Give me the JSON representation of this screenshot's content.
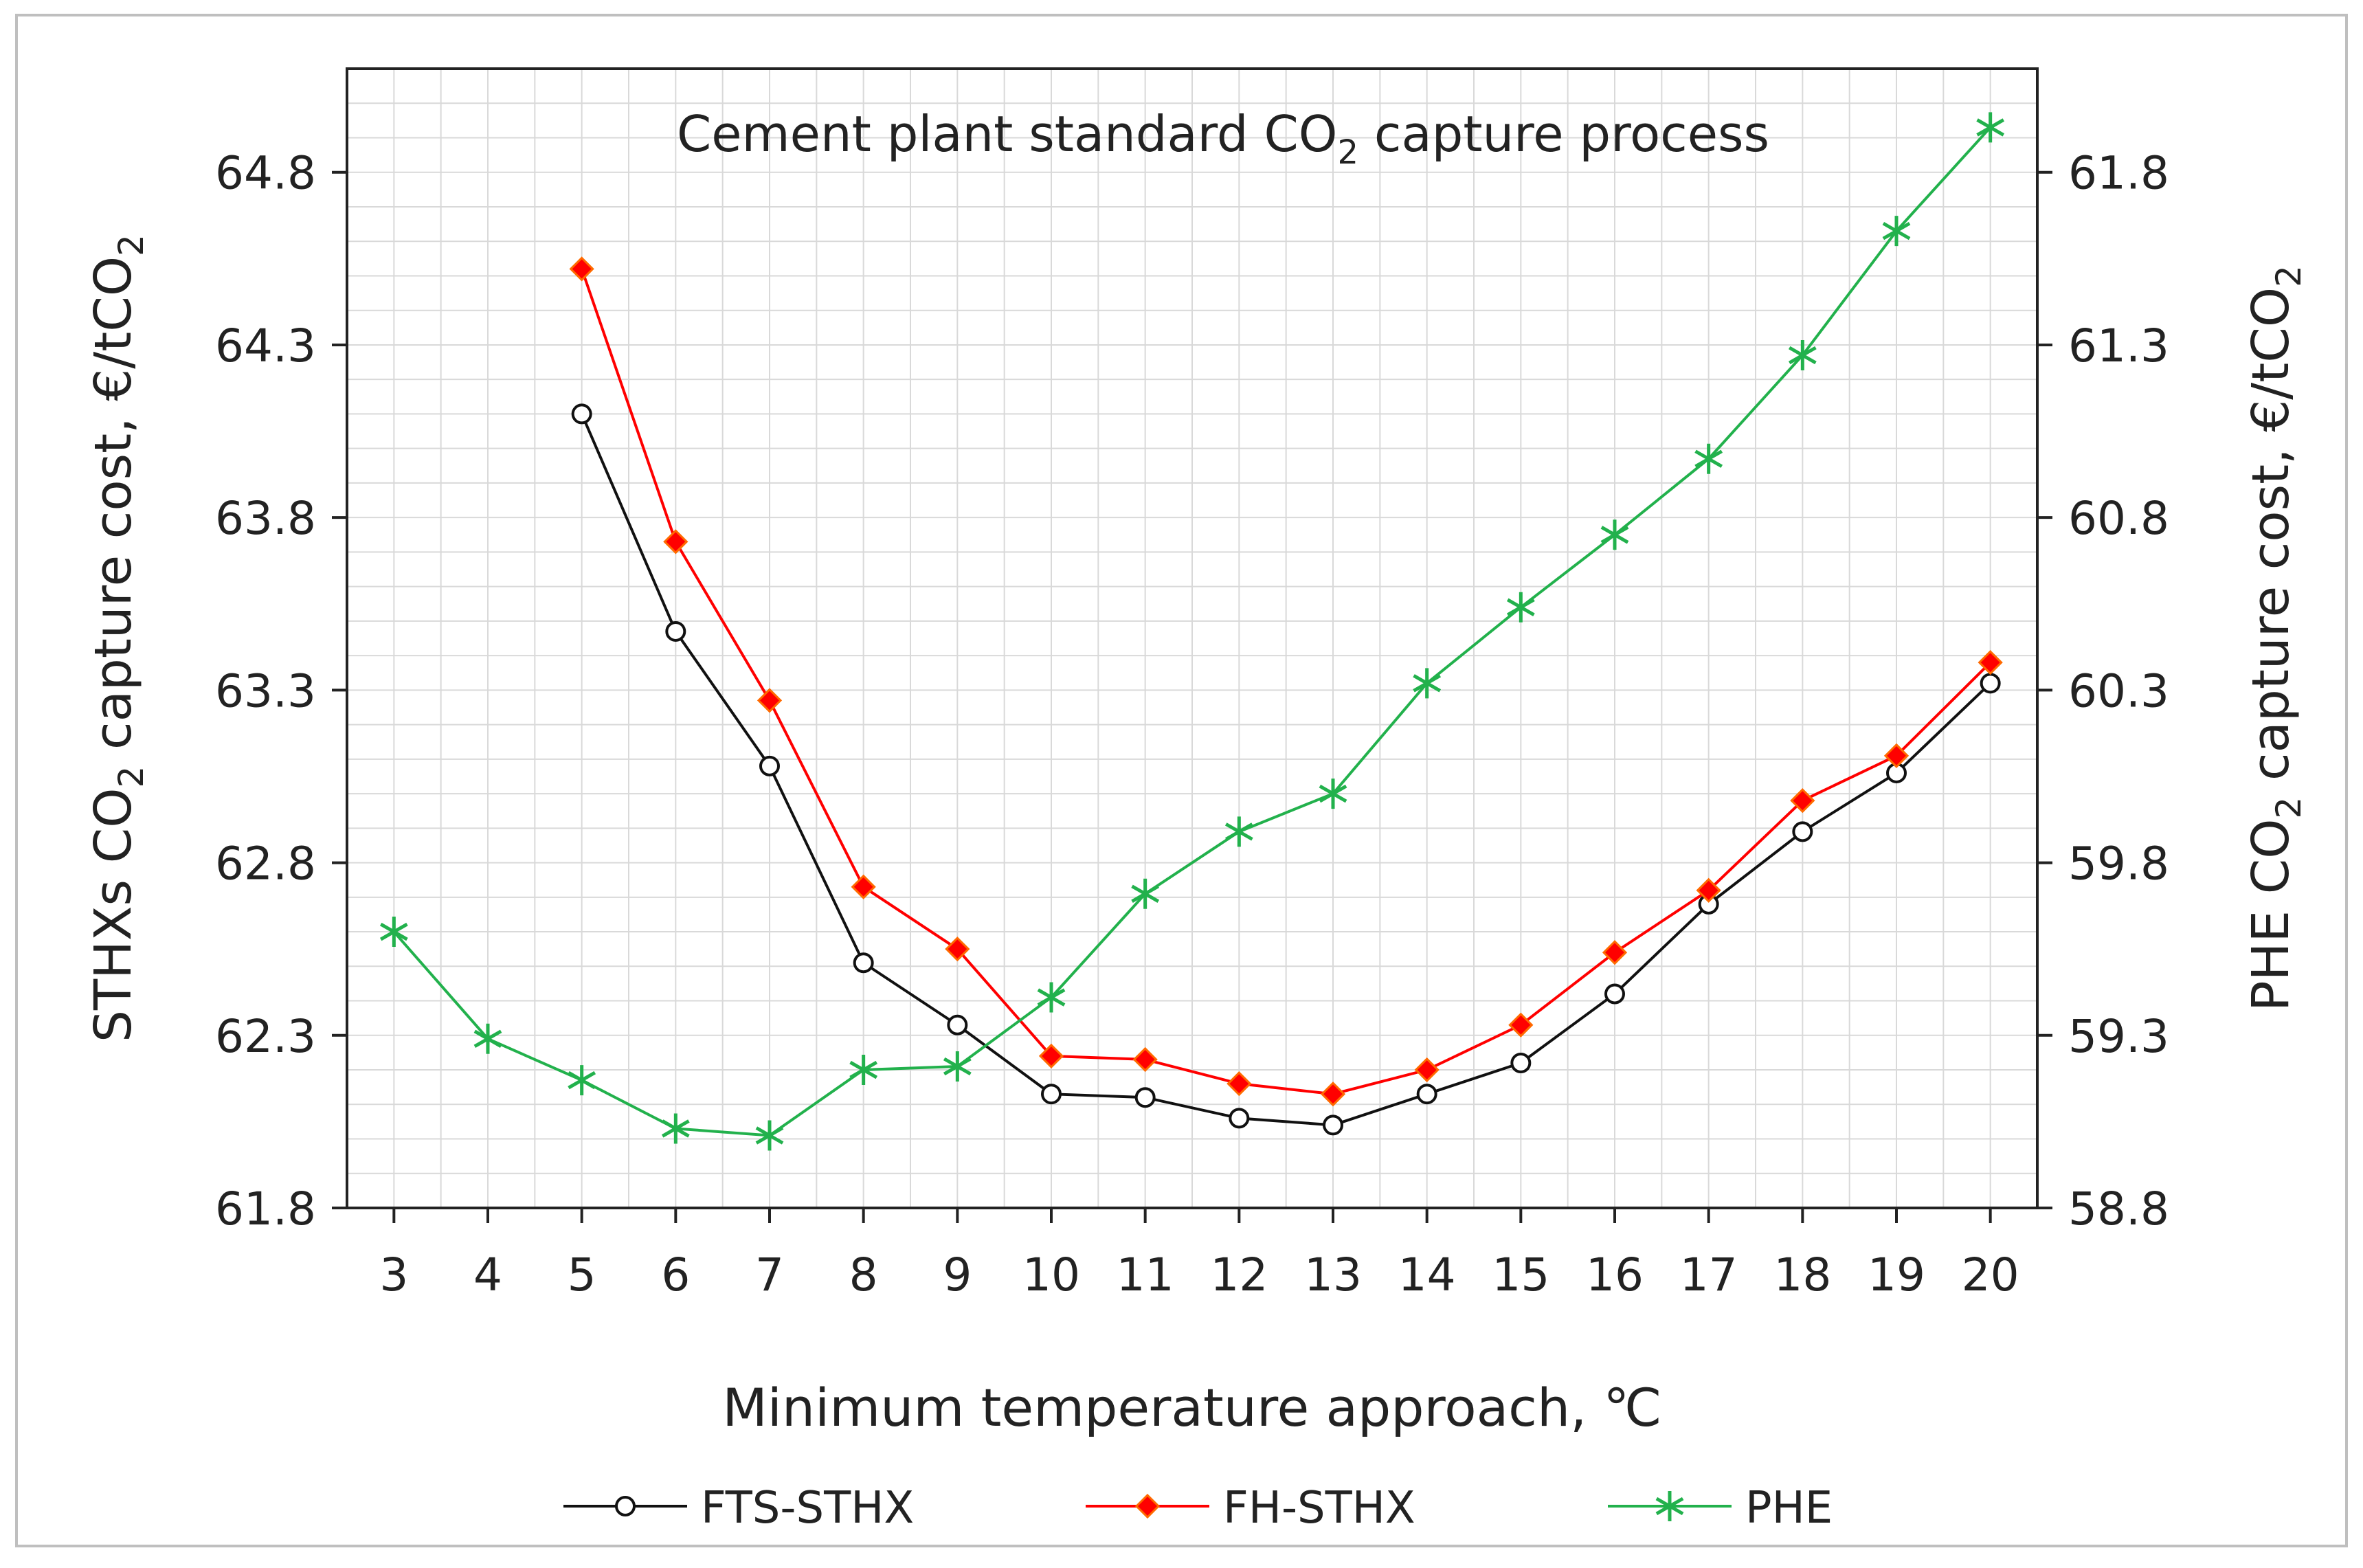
{
  "chart_data": {
    "type": "line",
    "title_prefix": "Cement plant standard CO",
    "title_sub": "2",
    "title_suffix": " capture process",
    "xlabel": "Minimum temperature approach, ℃",
    "ylabel_left": {
      "pre": "STHXs CO",
      "sub": "2",
      "mid": " capture cost, €/tCO",
      "sub2": "2"
    },
    "ylabel_right": {
      "pre": "PHE CO",
      "sub": "2",
      "mid": " capture cost, €/tCO",
      "sub2": "2"
    },
    "x": [
      3,
      4,
      5,
      6,
      7,
      8,
      9,
      10,
      11,
      12,
      13,
      14,
      15,
      16,
      17,
      18,
      19,
      20
    ],
    "xlim": [
      2.5,
      20.5
    ],
    "ylim_left": [
      61.8,
      65.1
    ],
    "ylim_right": [
      58.8,
      62.1
    ],
    "yticks_left": [
      "61.8",
      "62.3",
      "62.8",
      "63.3",
      "63.8",
      "64.3",
      "64.8"
    ],
    "yticks_right": [
      "58.8",
      "59.3",
      "59.8",
      "60.3",
      "60.8",
      "61.3",
      "61.8"
    ],
    "series": [
      {
        "name": "FTS-STHX",
        "axis": "left",
        "color": "#111111",
        "marker": "circle",
        "values": [
          null,
          null,
          64.1,
          63.47,
          63.08,
          62.51,
          62.33,
          62.13,
          62.12,
          62.06,
          62.04,
          62.13,
          62.22,
          62.42,
          62.68,
          62.89,
          63.06,
          63.32
        ]
      },
      {
        "name": "FH-STHX",
        "axis": "left",
        "color": "#ff0000",
        "marker": "diamond",
        "values": [
          null,
          null,
          64.52,
          63.73,
          63.27,
          62.73,
          62.55,
          62.24,
          62.23,
          62.16,
          62.13,
          62.2,
          62.33,
          62.54,
          62.72,
          62.98,
          63.11,
          63.38
        ]
      },
      {
        "name": "PHE",
        "axis": "right",
        "color": "#22b14c",
        "marker": "asterisk",
        "values": [
          59.6,
          59.29,
          59.17,
          59.03,
          59.01,
          59.2,
          59.21,
          59.41,
          59.71,
          59.89,
          60.0,
          60.32,
          60.54,
          60.75,
          60.97,
          61.27,
          61.63,
          61.93
        ]
      }
    ],
    "grid": true,
    "legend_position": "bottom"
  }
}
